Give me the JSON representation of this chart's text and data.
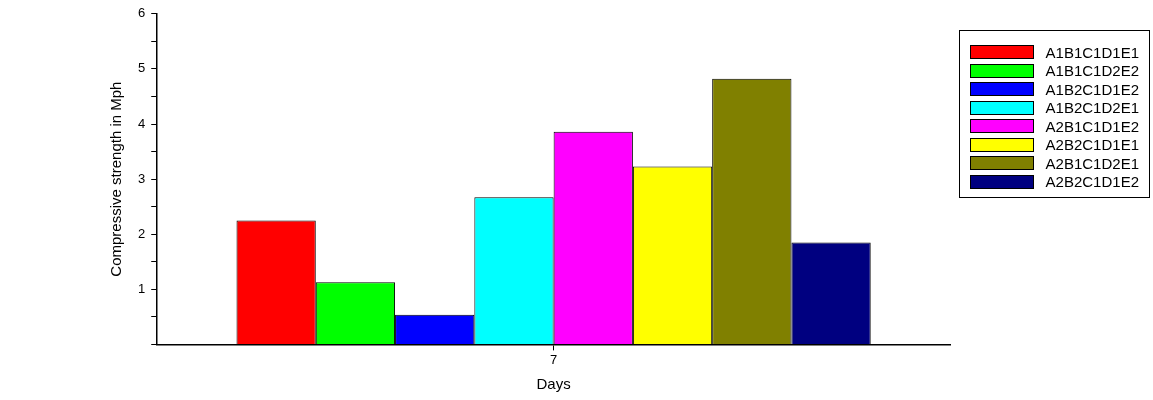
{
  "chart_data": {
    "type": "bar",
    "categories": [
      "7"
    ],
    "xlabel": "Days",
    "ylabel": "Compressive strength in Mph",
    "ylim": [
      0,
      6
    ],
    "yticks": [
      {
        "value": 0,
        "label": null
      },
      {
        "value": 0.5,
        "label": null
      },
      1,
      {
        "value": 1.5,
        "label": null
      },
      2,
      {
        "value": 2.5,
        "label": null
      },
      3,
      {
        "value": 3.5,
        "label": null
      },
      4,
      {
        "value": 4.5,
        "label": null
      },
      5,
      {
        "value": 5.5,
        "label": null
      },
      6
    ],
    "grid": false,
    "legend": "top right",
    "series": [
      {
        "name": "A1B1C1D1E1",
        "color": "#ff0000",
        "values": [
          2.25
        ]
      },
      {
        "name": "A1B1C1D2E2",
        "color": "#00ff00",
        "values": [
          1.13
        ]
      },
      {
        "name": "A1B2C1D1E2",
        "color": "#0000ff",
        "values": [
          0.54
        ]
      },
      {
        "name": "A1B2C1D2E1",
        "color": "#00ffff",
        "values": [
          2.67
        ]
      },
      {
        "name": "A2B1C1D1E2",
        "color": "#ff00ff",
        "values": [
          3.86
        ]
      },
      {
        "name": "A2B2C1D1E1",
        "color": "#ffff00",
        "values": [
          3.23
        ]
      },
      {
        "name": "A2B1C1D2E1",
        "color": "#808000",
        "values": [
          4.82
        ]
      },
      {
        "name": "A2B2C1D1E2",
        "color": "#000080",
        "values": [
          1.85
        ]
      }
    ]
  }
}
